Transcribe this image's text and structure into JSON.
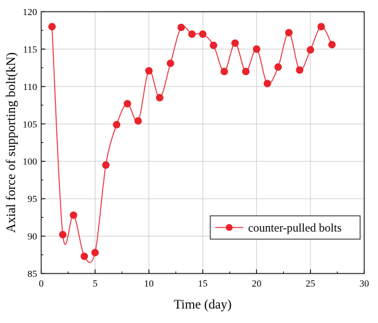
{
  "chart_data": {
    "type": "line",
    "xlabel": "Time (day)",
    "ylabel": "Axial force of supporting bolt(kN)",
    "xlim": [
      0,
      30
    ],
    "ylim": [
      85,
      120
    ],
    "x_ticks": [
      0,
      5,
      10,
      15,
      20,
      25,
      30
    ],
    "y_ticks": [
      85,
      90,
      95,
      100,
      105,
      110,
      115,
      120
    ],
    "grid": true,
    "legend_position": "bottom-right",
    "series": [
      {
        "name": "counter-pulled bolts",
        "color": "#e8232b",
        "marker": "circle",
        "smooth": true,
        "x": [
          1,
          2,
          3,
          4,
          5,
          6,
          7,
          8,
          9,
          10,
          11,
          12,
          13,
          14,
          15,
          16,
          17,
          18,
          19,
          20,
          21,
          22,
          23,
          24,
          25,
          26,
          27
        ],
        "y": [
          118.0,
          90.2,
          92.8,
          87.3,
          87.8,
          99.5,
          104.9,
          107.7,
          105.4,
          112.1,
          108.5,
          113.1,
          117.9,
          117.0,
          117.0,
          115.5,
          112.0,
          115.8,
          112.0,
          115.0,
          110.4,
          112.6,
          117.2,
          112.2,
          114.9,
          118.0,
          115.6
        ]
      }
    ]
  }
}
